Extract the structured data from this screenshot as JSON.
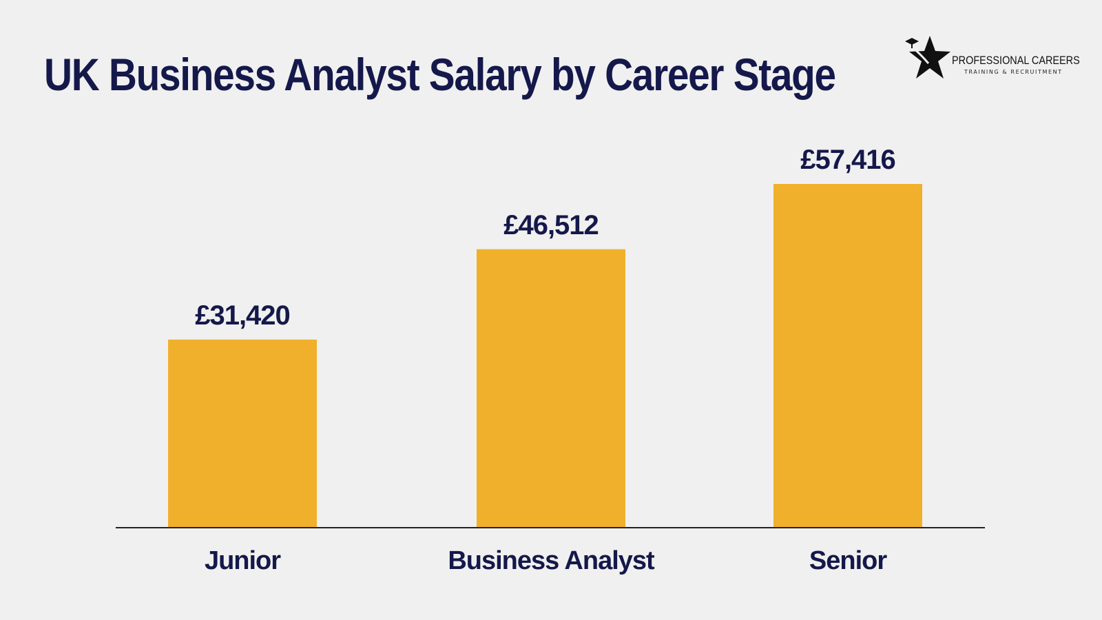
{
  "title": "UK Business Analyst Salary by Career Stage",
  "logo": {
    "name": "PROFESSIONAL CAREERS",
    "tagline": "TRAINING & RECRUITMENT",
    "icon": "star-graduate-icon"
  },
  "colors": {
    "background": "#f0f0f0",
    "bar": "#f1b02c",
    "text": "#15184a",
    "axis": "#222222"
  },
  "chart_data": {
    "type": "bar",
    "title": "UK Business Analyst Salary by Career Stage",
    "categories": [
      "Junior",
      "Business Analyst",
      "Senior"
    ],
    "values": [
      31420,
      46512,
      57416
    ],
    "value_labels": [
      "£31,420",
      "£46,512",
      "£57,416"
    ],
    "xlabel": "",
    "ylabel": "",
    "ylim": [
      0,
      57416
    ],
    "grid": false,
    "legend": "none"
  }
}
